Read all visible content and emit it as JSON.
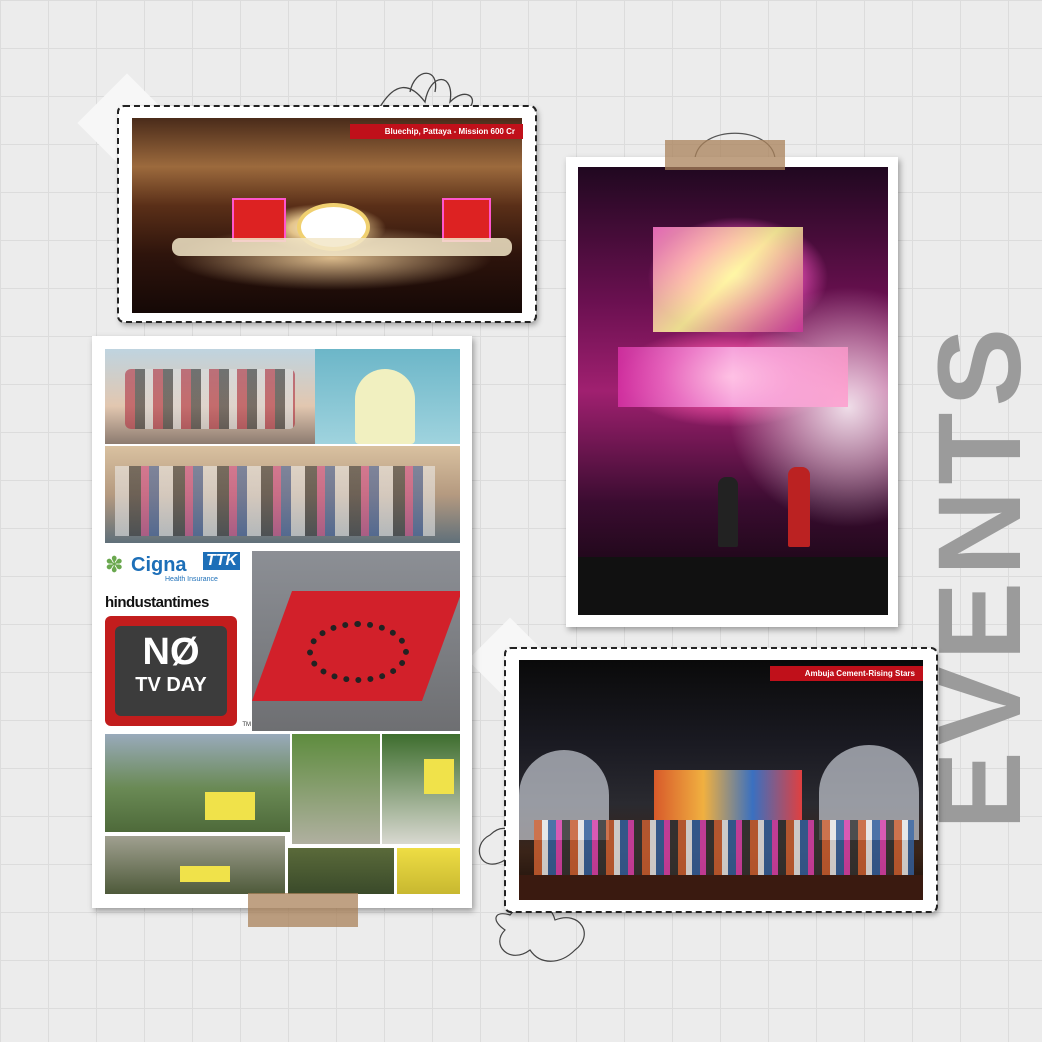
{
  "page": {
    "heading": "EVENTS"
  },
  "photos": {
    "bluechip": {
      "caption": "Bluechip, Pattaya - Mission 600 Cr"
    },
    "ambuja": {
      "caption": "Ambuja Cement-Rising Stars"
    }
  },
  "collage": {
    "cigna_brand": "Cigna",
    "cigna_tk": "TTK",
    "cigna_sub": "Health Insurance",
    "ht_brand": "hindustantimes",
    "no_tv_line1": "NØ",
    "no_tv_line2": "TV DAY",
    "tm": "TM"
  },
  "colors": {
    "caption_bg": "#c0101a",
    "heading": "#9b9b9b",
    "tape": "#aa825a"
  }
}
